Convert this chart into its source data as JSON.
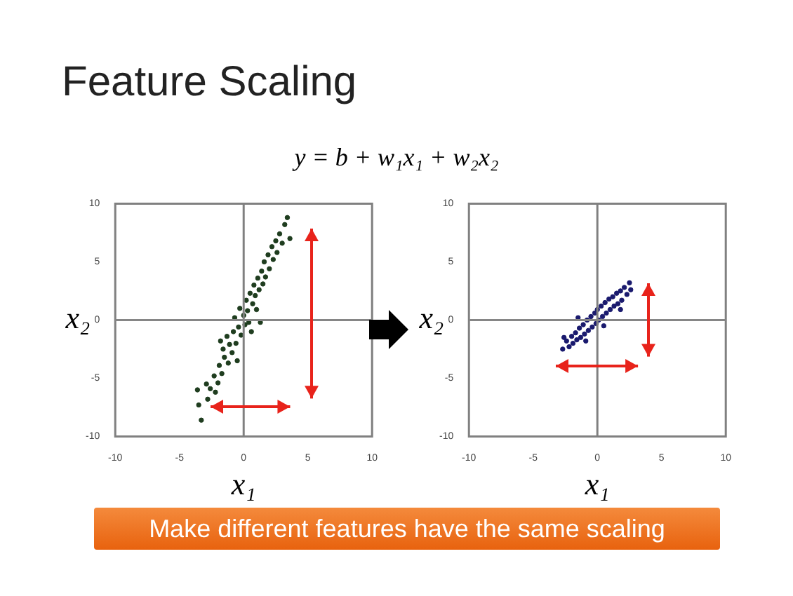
{
  "chart_data": [
    {
      "type": "scatter",
      "title": "Feature Scaling",
      "subtitle": "y = b + w₁x₁ + w₂x₂",
      "xlabel": "x₁",
      "ylabel": "x₂",
      "xlim": [
        -10,
        10
      ],
      "ylim": [
        -10,
        10
      ],
      "xticks": [
        -10,
        -5,
        0,
        5,
        10
      ],
      "yticks": [
        -10,
        -5,
        0,
        5,
        10
      ],
      "grid": false,
      "legend": false,
      "marker": "circle",
      "ref_lines": [
        {
          "axis": "x",
          "value": 0,
          "color": "#808080"
        },
        {
          "axis": "y",
          "value": 0,
          "color": "#868686"
        }
      ],
      "series": [
        {
          "color": "#1f3d1f",
          "x": [
            -3.3,
            -3.5,
            -2.8,
            -2.6,
            -2.9,
            -2.2,
            -2.3,
            -2.0,
            -1.9,
            -1.7,
            -1.5,
            -1.6,
            -1.2,
            -1.1,
            -1.3,
            -0.9,
            -0.8,
            -0.6,
            -0.7,
            -0.4,
            -0.3,
            -0.2,
            0.0,
            0.1,
            0.2,
            0.3,
            0.5,
            0.4,
            0.7,
            0.8,
            0.9,
            1.1,
            1.0,
            1.2,
            1.4,
            1.5,
            1.6,
            1.7,
            1.9,
            2.0,
            2.2,
            2.3,
            2.5,
            2.6,
            2.8,
            3.0,
            3.2,
            3.4,
            3.6,
            -0.5,
            0.6,
            1.3,
            -1.8,
            -3.6
          ],
          "values": [
            -8.6,
            -7.3,
            -6.8,
            -5.9,
            -5.5,
            -6.2,
            -4.8,
            -5.4,
            -3.9,
            -4.6,
            -3.2,
            -2.5,
            -3.7,
            -2.1,
            -1.4,
            -2.8,
            -1.0,
            -2.0,
            0.2,
            -0.6,
            1.0,
            -1.3,
            0.4,
            -0.4,
            1.7,
            0.8,
            2.3,
            -0.2,
            1.4,
            3.0,
            2.1,
            3.6,
            0.9,
            2.6,
            4.2,
            3.1,
            5.0,
            3.7,
            5.6,
            4.4,
            6.3,
            5.2,
            6.8,
            5.8,
            7.4,
            6.6,
            8.2,
            8.8,
            7.0,
            -3.5,
            -1.0,
            -0.2,
            -1.8,
            -6.0
          ]
        }
      ]
    },
    {
      "type": "scatter",
      "xlabel": "x₁",
      "ylabel": "x₂",
      "xlim": [
        -10,
        10
      ],
      "ylim": [
        -10,
        10
      ],
      "xticks": [
        -10,
        -5,
        0,
        5,
        10
      ],
      "yticks": [
        -10,
        -5,
        0,
        5,
        10
      ],
      "grid": false,
      "legend": false,
      "marker": "circle",
      "annotations": [
        "Make different features have the same scaling"
      ],
      "ref_lines": [
        {
          "axis": "x",
          "value": 0,
          "color": "#808080"
        },
        {
          "axis": "y",
          "value": 0,
          "color": "#868686"
        }
      ],
      "series": [
        {
          "color": "#1a1a6e",
          "x": [
            -2.7,
            -2.4,
            -2.2,
            -2.0,
            -1.9,
            -1.7,
            -1.6,
            -1.4,
            -1.3,
            -1.1,
            -1.0,
            -0.8,
            -0.7,
            -0.5,
            -0.4,
            -0.2,
            -0.1,
            0.0,
            0.1,
            0.3,
            0.4,
            0.6,
            0.7,
            0.9,
            1.0,
            1.2,
            1.3,
            1.5,
            1.6,
            1.8,
            1.9,
            2.1,
            2.3,
            2.5,
            2.6,
            -1.5,
            0.5,
            1.8,
            -0.9,
            -2.6
          ],
          "values": [
            -2.5,
            -1.8,
            -2.3,
            -1.4,
            -2.0,
            -1.1,
            -1.7,
            -0.7,
            -1.5,
            -0.4,
            -1.2,
            0.0,
            -0.9,
            0.3,
            -0.6,
            0.6,
            -0.3,
            0.9,
            0.0,
            1.2,
            0.3,
            1.5,
            0.6,
            1.8,
            0.9,
            2.0,
            1.2,
            2.3,
            1.4,
            2.5,
            1.7,
            2.8,
            2.2,
            3.2,
            2.6,
            0.2,
            -0.5,
            0.9,
            -1.8,
            -1.5
          ]
        }
      ]
    }
  ]
}
